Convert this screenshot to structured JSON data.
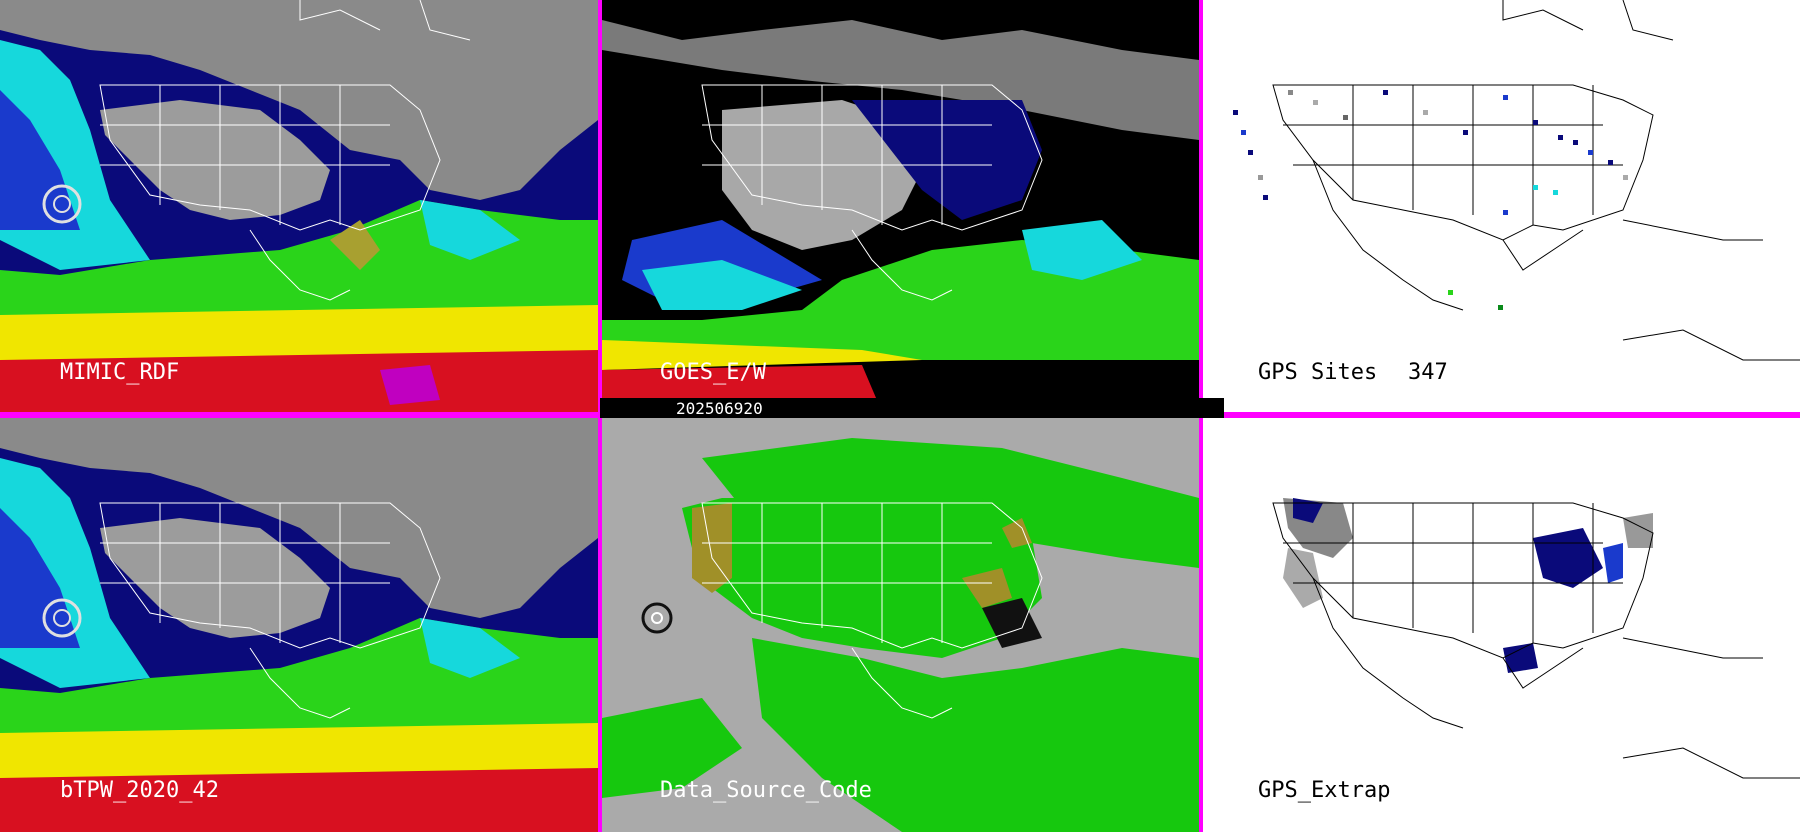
{
  "panels": [
    {
      "id": "mimic",
      "label": "MIMIC_RDF"
    },
    {
      "id": "goes",
      "label": "GOES_E/W"
    },
    {
      "id": "gps-sites",
      "label": "GPS Sites",
      "count": "347"
    },
    {
      "id": "btpw",
      "label": "bTPW_2020_42"
    },
    {
      "id": "dsc",
      "label": "Data_Source_Code"
    },
    {
      "id": "gps-extrap",
      "label": "GPS_Extrap"
    }
  ],
  "timestamp": "202506920",
  "colors": {
    "divider": "#ff00ff",
    "dry_gray": "#b4b4b4",
    "navy": "#0a0a7a",
    "blue": "#1a3acc",
    "cyan": "#16d8dc",
    "green": "#2ad41a",
    "olive": "#a8a030",
    "yellow": "#f0e600",
    "red": "#d81020",
    "magenta": "#c000c0",
    "dsc_green": "#16c80e",
    "dsc_gray": "#aaaaaa",
    "dsc_olive": "#a09028",
    "white_bg": "#ffffff"
  }
}
